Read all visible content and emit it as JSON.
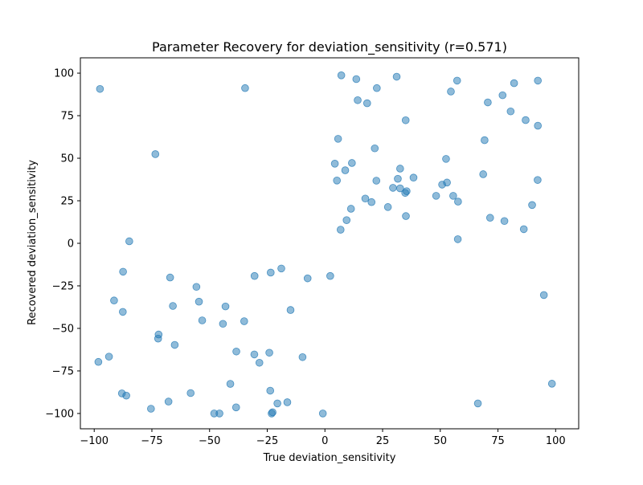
{
  "chart_data": {
    "type": "scatter",
    "title": "Parameter Recovery for deviation_sensitivity (r=0.571)",
    "xlabel": "True deviation_sensitivity",
    "ylabel": "Recovered deviation_sensitivity",
    "xlim": [
      -106,
      110
    ],
    "ylim": [
      -109,
      109
    ],
    "xticks": [
      -100,
      -75,
      -50,
      -25,
      0,
      25,
      50,
      75,
      100
    ],
    "yticks": [
      -100,
      -75,
      -50,
      -25,
      0,
      25,
      50,
      75,
      100
    ],
    "grid": false,
    "marker_color": "#1f77b4",
    "marker_alpha": 0.5,
    "series": [
      {
        "x": [
          -97.5,
          -34.6,
          7.1,
          13.6,
          22.5,
          31.1,
          57.3,
          54.6,
          92.3,
          82,
          77,
          70.6,
          80.5,
          87,
          92.3,
          14.2,
          18.3,
          35,
          69.2,
          5.7,
          -73.5,
          21.6,
          4.3,
          11.7,
          52.5,
          8.8,
          5.2,
          32.6,
          38.4,
          31.6,
          22.3,
          50.8,
          68.6,
          92.2,
          52.9,
          29.5,
          32.6,
          35.4,
          34.8,
          48.2,
          55.6,
          17.5,
          20.2,
          57.7,
          89.8,
          27.3,
          11.3,
          35.1,
          71.6,
          77.8,
          9.4,
          86.2,
          6.8,
          57.6,
          -84.8,
          -87.5,
          2.3,
          -7.5,
          -18.9,
          -23.5,
          -30.5,
          -67.1,
          -55.7,
          -91.4,
          -54.6,
          -65.9,
          -87.6,
          -43.1,
          -53.2,
          -35,
          -44.2,
          -72.1,
          -72.3,
          -65.1,
          -38.4,
          -24.1,
          -30.6,
          -9.7,
          -93.6,
          -98.2,
          -28.4,
          94.9,
          -41,
          98.4,
          -23.7,
          -88,
          -86.1,
          -58.2,
          -67.8,
          -20.6,
          -16.3,
          66.3,
          -38.5,
          -75.4,
          -22.7,
          -23.1,
          -48,
          -45.7,
          -0.9,
          -14.9
        ],
        "y": [
          90.7,
          91.2,
          98.7,
          96.5,
          91.2,
          97.9,
          95.6,
          89.2,
          95.6,
          94.1,
          87,
          82.8,
          77.5,
          72.4,
          69.1,
          84.1,
          82.3,
          72.3,
          60.6,
          61.4,
          52.4,
          55.8,
          46.8,
          47.2,
          49.6,
          42.9,
          36.9,
          43.9,
          38.6,
          37.9,
          36.8,
          34.5,
          40.6,
          37.2,
          35.7,
          32.6,
          32.3,
          30.6,
          29.6,
          27.9,
          27.9,
          26.3,
          24.2,
          24.5,
          22.5,
          21.3,
          20.3,
          16,
          15,
          13.1,
          13.6,
          8.3,
          8,
          2.4,
          1.2,
          -16.7,
          -19.2,
          -20.6,
          -14.8,
          -17.2,
          -19.2,
          -20.1,
          -25.6,
          -33.6,
          -34.3,
          -36.8,
          -40.3,
          -37.1,
          -45.3,
          -45.8,
          -47.3,
          -53.6,
          -56,
          -59.7,
          -63.6,
          -64.3,
          -65.3,
          -66.9,
          -66.6,
          -69.7,
          -70.2,
          -30.4,
          -82.6,
          -82.5,
          -86.6,
          -88.2,
          -89.5,
          -88,
          -93,
          -94.1,
          -93.4,
          -94.1,
          -96.4,
          -97.2,
          -99.3,
          -100,
          -100,
          -100,
          -100,
          -39.2
        ]
      }
    ]
  }
}
